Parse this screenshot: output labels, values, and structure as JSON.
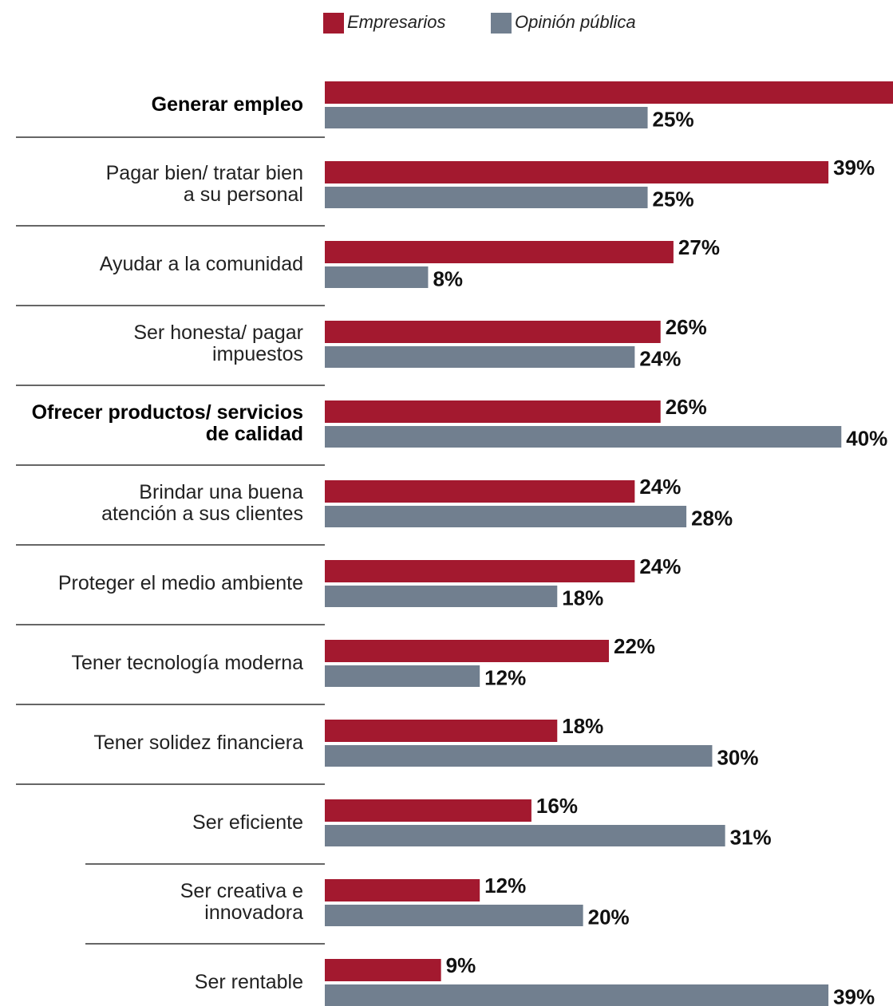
{
  "chart_data": {
    "type": "bar",
    "orientation": "horizontal",
    "categories": [
      "Generar empleo",
      "Pagar bien/ tratar bien\na su personal",
      "Ayudar a la comunidad",
      "Ser honesta/ pagar\nimpuestos",
      "Ofrecer productos/ servicios\nde calidad",
      "Brindar una buena\natención a sus clientes",
      "Proteger el medio ambiente",
      "Tener tecnología moderna",
      "Tener solidez financiera",
      "Ser eficiente",
      "Ser creativa e\ninnovadora",
      "Ser rentable"
    ],
    "bold_categories": [
      0,
      4
    ],
    "series": [
      {
        "name": "Empresarios",
        "color": "#a3192f",
        "values": [
          46,
          39,
          27,
          26,
          26,
          24,
          24,
          22,
          18,
          16,
          12,
          9
        ],
        "value_labels": [
          null,
          "39%",
          "27%",
          "26%",
          "26%",
          "24%",
          "24%",
          "22%",
          "18%",
          "16%",
          "12%",
          "9%"
        ]
      },
      {
        "name": "Opinión pública",
        "color": "#717f8f",
        "values": [
          25,
          25,
          8,
          24,
          40,
          28,
          18,
          12,
          30,
          31,
          20,
          39
        ],
        "value_labels": [
          "25%",
          "25%",
          "8%",
          "24%",
          "40%",
          "28%",
          "18%",
          "12%",
          "30%",
          "31%",
          "20%",
          "39%"
        ]
      }
    ],
    "xlim": [
      0,
      44
    ]
  }
}
